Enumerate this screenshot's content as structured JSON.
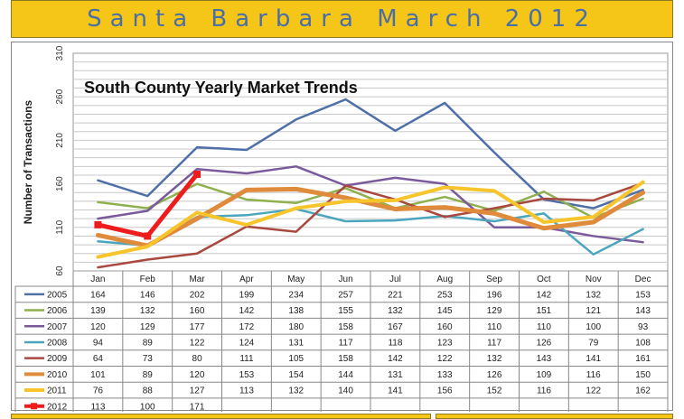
{
  "header": {
    "title": "Santa Barbara March  2012"
  },
  "chart_data": {
    "type": "line",
    "title": "South County Yearly Market Trends",
    "xlabel": "",
    "ylabel": "Number of Transactions",
    "ylim": [
      60,
      310
    ],
    "yticks": [
      60,
      110,
      160,
      210,
      260,
      310
    ],
    "grid": true,
    "legend": "table-below",
    "categories": [
      "Jan",
      "Feb",
      "Mar",
      "Apr",
      "May",
      "Jun",
      "Jul",
      "Aug",
      "Sep",
      "Oct",
      "Nov",
      "Dec"
    ],
    "series": [
      {
        "name": "2005",
        "color": "#4f6fa8",
        "width": 2.5,
        "values": [
          164,
          146,
          202,
          199,
          234,
          257,
          221,
          253,
          196,
          142,
          132,
          153
        ]
      },
      {
        "name": "2006",
        "color": "#8fb04e",
        "width": 2.5,
        "values": [
          139,
          132,
          160,
          142,
          138,
          155,
          132,
          145,
          129,
          151,
          121,
          143
        ]
      },
      {
        "name": "2007",
        "color": "#7b5a9c",
        "width": 2.5,
        "values": [
          120,
          129,
          177,
          172,
          180,
          158,
          167,
          160,
          110,
          110,
          100,
          93
        ]
      },
      {
        "name": "2008",
        "color": "#4aa6bd",
        "width": 2.5,
        "values": [
          94,
          89,
          122,
          124,
          131,
          117,
          118,
          123,
          117,
          126,
          79,
          108
        ]
      },
      {
        "name": "2009",
        "color": "#a9483f",
        "width": 2.5,
        "values": [
          64,
          73,
          80,
          111,
          105,
          158,
          142,
          122,
          132,
          143,
          141,
          161
        ]
      },
      {
        "name": "2010",
        "color": "#e08a3c",
        "width": 5,
        "values": [
          101,
          89,
          120,
          153,
          154,
          144,
          131,
          133,
          126,
          109,
          116,
          150
        ]
      },
      {
        "name": "2011",
        "color": "#f7c52b",
        "width": 4,
        "values": [
          76,
          88,
          127,
          113,
          132,
          140,
          141,
          156,
          152,
          116,
          122,
          162
        ]
      },
      {
        "name": "2012",
        "color": "#ee1c1c",
        "width": 5,
        "marker": "square",
        "values": [
          113,
          100,
          171,
          null,
          null,
          null,
          null,
          null,
          null,
          null,
          null,
          null
        ]
      }
    ]
  }
}
